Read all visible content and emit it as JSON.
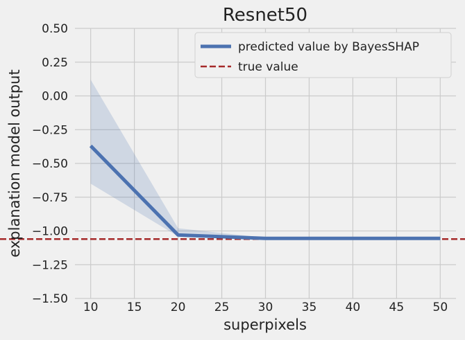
{
  "chart_data": {
    "type": "line",
    "title": "Resnet50",
    "xlabel": "superpixels",
    "ylabel": "explanation model output",
    "xlim": [
      8.2,
      51.8
    ],
    "ylim": [
      -1.5,
      0.5
    ],
    "xticks": [
      10,
      15,
      20,
      25,
      30,
      35,
      40,
      45,
      50
    ],
    "yticks": [
      -1.5,
      -1.25,
      -1.0,
      -0.75,
      -0.5,
      -0.25,
      0.0,
      0.25,
      0.5
    ],
    "x_tick_labels": [
      "10",
      "15",
      "20",
      "25",
      "30",
      "35",
      "40",
      "45",
      "50"
    ],
    "y_tick_labels": [
      "−1.50",
      "−1.25",
      "−1.00",
      "−0.75",
      "−0.50",
      "−0.25",
      "0.00",
      "0.25",
      "0.50"
    ],
    "grid": true,
    "legend_position": "top-right",
    "series": [
      {
        "name": "predicted value by BayesSHAP",
        "style": "solid",
        "color": "#4c72b0",
        "x": [
          10,
          20,
          30,
          40,
          50
        ],
        "y": [
          -0.37,
          -1.03,
          -1.055,
          -1.055,
          -1.055
        ],
        "band_upper": [
          0.12,
          -0.98,
          -1.05,
          -1.05,
          -1.05
        ],
        "band_lower": [
          -0.65,
          -1.04,
          -1.06,
          -1.06,
          -1.06
        ]
      },
      {
        "name": "true value",
        "style": "dashed",
        "color": "#a52a2a",
        "y": -1.06
      }
    ]
  }
}
